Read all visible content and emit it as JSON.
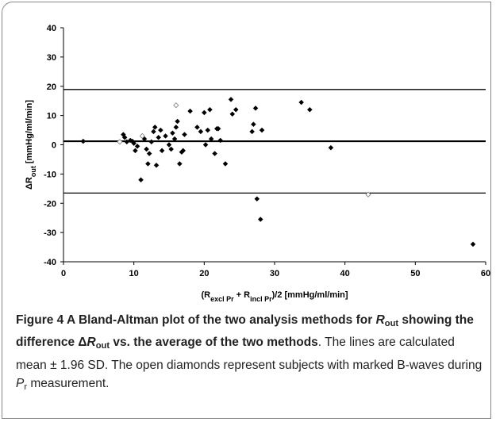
{
  "chart_data": {
    "type": "scatter",
    "ylabel": [
      {
        "text": "ΔR"
      },
      {
        "text": "out",
        "sub": true
      },
      {
        "text": " [mmHg/ml/min]"
      }
    ],
    "xlabel": [
      {
        "text": "(R"
      },
      {
        "text": "excl Pr",
        "sub": true
      },
      {
        "text": " + R"
      },
      {
        "text": "incl Pr",
        "sub": true
      },
      {
        "text": ")/2 [mmHg/ml/min]"
      }
    ],
    "xlim": [
      0,
      60
    ],
    "xticks": [
      0,
      10,
      20,
      30,
      40,
      50,
      60
    ],
    "ylim": [
      -40,
      40
    ],
    "yticks": [
      -40,
      -30,
      -20,
      -10,
      0,
      10,
      20,
      30,
      40
    ],
    "mean": 1.2,
    "limits": [
      -16.5,
      18.9
    ],
    "series": [
      {
        "marker": "filled",
        "color": "#000000",
        "x": [
          2.8,
          8.5,
          8.7,
          9,
          9.5,
          9.8,
          10,
          10.2,
          10.5,
          11,
          11.5,
          11.8,
          12,
          12.2,
          12.5,
          12.8,
          13,
          13.2,
          13.5,
          13.8,
          14,
          14.5,
          15,
          15.3,
          15.5,
          15.8,
          16,
          16.2,
          16.5,
          16.8,
          17,
          17.2,
          18,
          19,
          19.5,
          20,
          20.2,
          20.5,
          20.8,
          21,
          21.5,
          21.8,
          22,
          22.3,
          23,
          23.8,
          24,
          24.5,
          26.8,
          27,
          27.3,
          27.5,
          28,
          28.2,
          33.8,
          35,
          38,
          58.2
        ],
        "values": [
          1.2,
          3.5,
          2.5,
          1,
          1.5,
          1.2,
          0.5,
          -2,
          -0.5,
          -12,
          2,
          -1.5,
          -6.5,
          -3,
          1,
          4.5,
          6,
          -7,
          2.5,
          5,
          -2,
          3,
          0,
          -1.5,
          4,
          2,
          6,
          8,
          -6.5,
          -2.5,
          -2,
          3.5,
          11.5,
          6,
          4.5,
          11,
          0,
          5,
          12,
          2,
          -3,
          5.5,
          5.5,
          1.5,
          -6.5,
          15.5,
          10.5,
          12,
          4.5,
          7,
          12.5,
          -18.5,
          -25.5,
          5,
          14.5,
          12,
          -1,
          -34
        ]
      },
      {
        "marker": "open",
        "color": "#888888",
        "x": [
          8,
          11.2,
          16,
          43.3
        ],
        "values": [
          1,
          3,
          13.5,
          -17
        ]
      }
    ]
  },
  "caption": [
    {
      "text": "Figure 4 A Bland-Altman plot of the two analysis methods for ",
      "style": "bold"
    },
    {
      "text": "R",
      "style": "bold italic"
    },
    {
      "text": "out",
      "style": "bold sub"
    },
    {
      "text": " showing the difference Δ",
      "style": "bold"
    },
    {
      "text": "R",
      "style": "bold italic"
    },
    {
      "text": "out",
      "style": "bold sub"
    },
    {
      "text": " vs. the average of the two methods",
      "style": "bold"
    },
    {
      "text": ". The lines are calculated mean ± 1.96 SD. The open diamonds represent subjects with marked B-waves during ",
      "style": "plain"
    },
    {
      "text": "P",
      "style": "italic"
    },
    {
      "text": "r",
      "style": "sub"
    },
    {
      "text": " measurement.",
      "style": "plain"
    }
  ]
}
